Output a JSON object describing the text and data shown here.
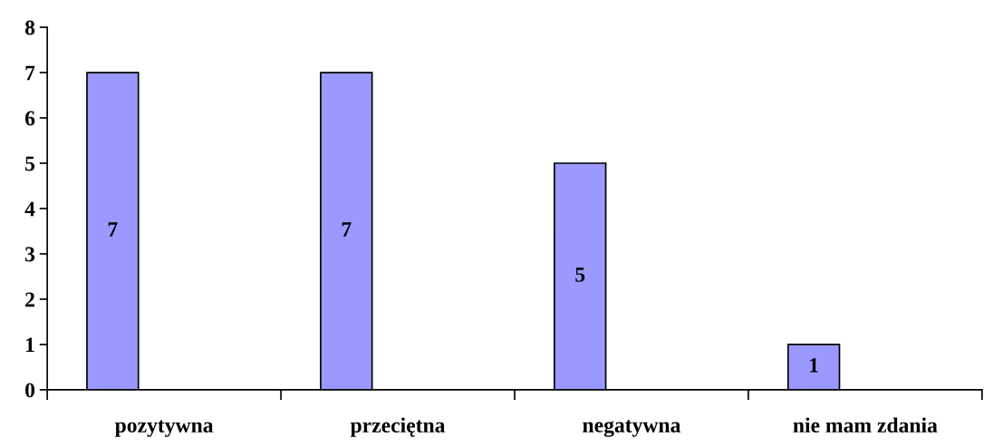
{
  "chart_data": {
    "type": "bar",
    "categories": [
      "pozytywna",
      "przeciętna",
      "negatywna",
      "nie mam zdania"
    ],
    "values": [
      7,
      7,
      5,
      1
    ],
    "color": "#9999ff",
    "ylim": [
      0,
      8
    ],
    "yticks": [
      0,
      1,
      2,
      3,
      4,
      5,
      6,
      7,
      8
    ],
    "data_labels": true,
    "grid": false,
    "legend": false
  }
}
